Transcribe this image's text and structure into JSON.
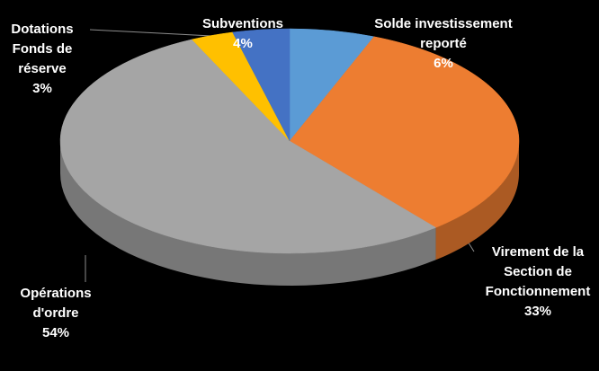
{
  "chart_data": {
    "type": "pie",
    "categories": [
      "Solde investissement reporté",
      "Virement de la Section de Fonctionnement",
      "Opérations d'ordre",
      "Dotations Fonds de réserve",
      "Subventions"
    ],
    "values": [
      6,
      33,
      54,
      3,
      4
    ],
    "value_labels": [
      "6%",
      "33%",
      "54%",
      "3%",
      "4%"
    ],
    "colors": [
      "#5b9bd5",
      "#ed7d31",
      "#a5a5a5",
      "#ffc000",
      "#4472c4"
    ]
  }
}
